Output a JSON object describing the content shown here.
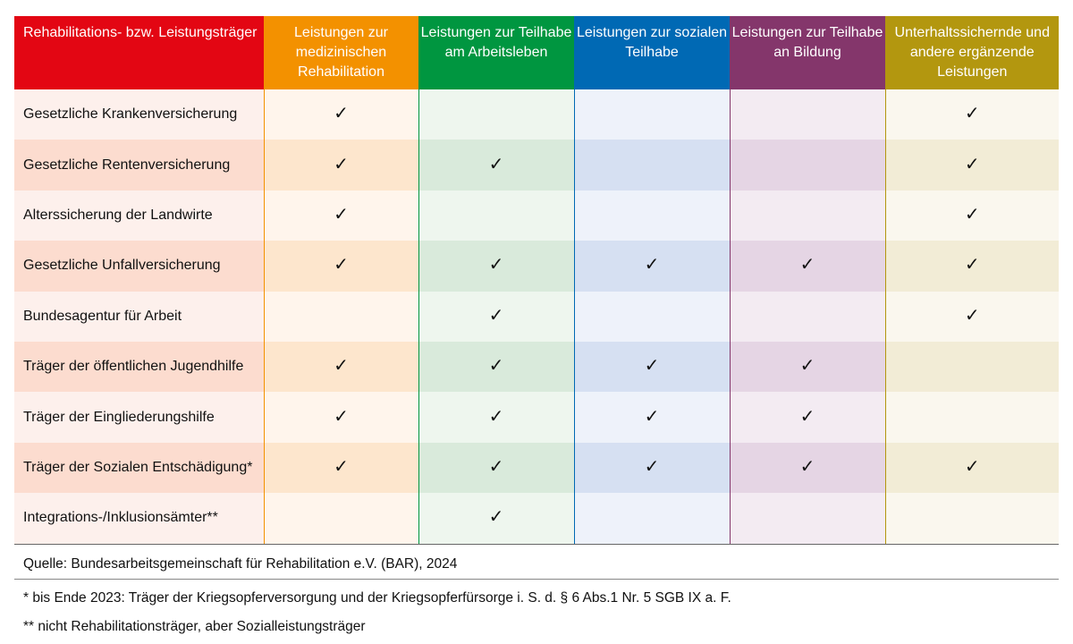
{
  "colors": {
    "c0": "#e30613",
    "c1": "#f39100",
    "c2": "#009640",
    "c3": "#0069b4",
    "c4": "#84366b",
    "c5": "#b3970f"
  },
  "columns": [
    "Rehabilitations- bzw. Leistungsträger",
    "Leistungen zur medizinischen Rehabilitation",
    "Leistungen zur Teilhabe am Arbeitsleben",
    "Leistungen zur sozialen Teilhabe",
    "Leistungen zur Teilhabe an Bildung",
    "Unterhaltssichernde und andere ergänzende Leistungen"
  ],
  "check_symbol": "✓",
  "rows": [
    {
      "label": "Gesetzliche Krankenversicherung",
      "checks": [
        1,
        0,
        0,
        0,
        1
      ]
    },
    {
      "label": "Gesetzliche Rentenversicherung",
      "checks": [
        1,
        1,
        0,
        0,
        1
      ]
    },
    {
      "label": "Alterssicherung der Landwirte",
      "checks": [
        1,
        0,
        0,
        0,
        1
      ]
    },
    {
      "label": "Gesetzliche Unfallversicherung",
      "checks": [
        1,
        1,
        1,
        1,
        1
      ]
    },
    {
      "label": "Bundesagentur für Arbeit",
      "checks": [
        0,
        1,
        0,
        0,
        1
      ]
    },
    {
      "label": "Träger der öffentlichen Jugendhilfe",
      "checks": [
        1,
        1,
        1,
        1,
        0
      ]
    },
    {
      "label": "Träger der Eingliederungshilfe",
      "checks": [
        1,
        1,
        1,
        1,
        0
      ]
    },
    {
      "label": "Träger der Sozialen Entschädigung*",
      "checks": [
        1,
        1,
        1,
        1,
        1
      ]
    },
    {
      "label": "Integrations-/Inklusionsämter**",
      "checks": [
        0,
        1,
        0,
        0,
        0
      ]
    }
  ],
  "source": "Quelle: Bundesarbeitsgemeinschaft für Rehabilitation e.V. (BAR), 2024",
  "footnote1": "* bis Ende 2023: Träger der Kriegsopferversorgung und der Kriegsopferfürsorge i. S. d. § 6 Abs.1 Nr. 5 SGB IX a. F.",
  "footnote2": "** nicht Rehabilitationsträger, aber Sozialleistungsträger"
}
